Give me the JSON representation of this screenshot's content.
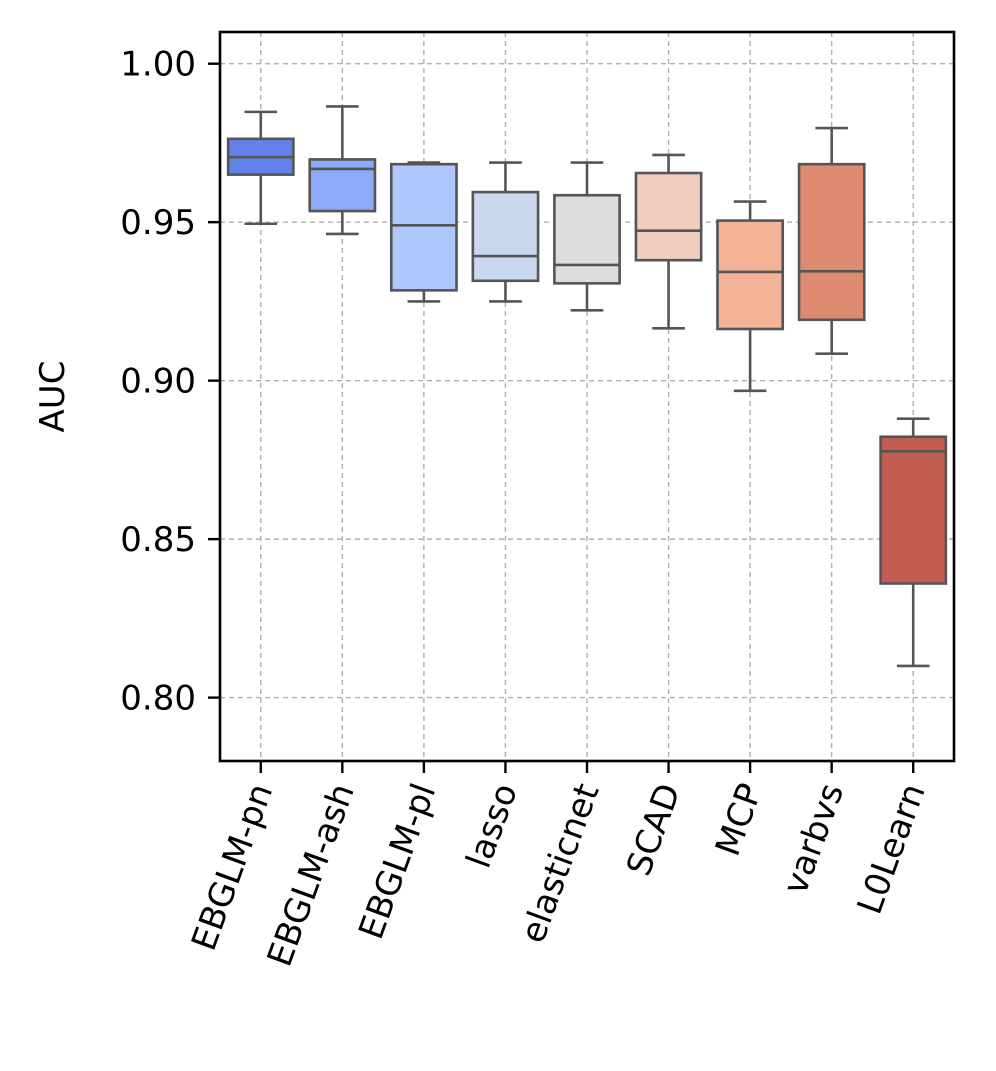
{
  "chart_data": {
    "type": "box",
    "title": "",
    "xlabel": "",
    "ylabel": "AUC",
    "ylim": [
      0.78,
      1.01
    ],
    "yticks": [
      "1.00",
      "0.95",
      "0.90",
      "0.85",
      "0.80"
    ],
    "grid": true,
    "categories": [
      "EBGLM-pn",
      "EBGLM-ash",
      "EBGLM-pl",
      "lasso",
      "elasticnet",
      "SCAD",
      "MCP",
      "varbvs",
      "L0Learn"
    ],
    "colors": [
      "#6282ea",
      "#8caaf7",
      "#aec7fd",
      "#cad8ef",
      "#dddddd",
      "#efcebd",
      "#f4b296",
      "#de8a71",
      "#c25d51"
    ],
    "edge_color": "#555555",
    "grid_color": "#b0b0b0",
    "boxes": [
      {
        "name": "EBGLM-pn",
        "whisker_low": 0.9495,
        "q1": 0.965,
        "median": 0.9705,
        "q3": 0.9763,
        "whisker_high": 0.9848
      },
      {
        "name": "EBGLM-ash",
        "whisker_low": 0.9463,
        "q1": 0.9535,
        "median": 0.9668,
        "q3": 0.9698,
        "whisker_high": 0.9865
      },
      {
        "name": "EBGLM-pl",
        "whisker_low": 0.925,
        "q1": 0.9285,
        "median": 0.949,
        "q3": 0.9683,
        "whisker_high": 0.9688
      },
      {
        "name": "lasso",
        "whisker_low": 0.925,
        "q1": 0.9315,
        "median": 0.9393,
        "q3": 0.9595,
        "whisker_high": 0.9688
      },
      {
        "name": "elasticnet",
        "whisker_low": 0.9222,
        "q1": 0.9307,
        "median": 0.9365,
        "q3": 0.9585,
        "whisker_high": 0.9688
      },
      {
        "name": "SCAD",
        "whisker_low": 0.9165,
        "q1": 0.938,
        "median": 0.9473,
        "q3": 0.9655,
        "whisker_high": 0.9712
      },
      {
        "name": "MCP",
        "whisker_low": 0.8968,
        "q1": 0.9163,
        "median": 0.9343,
        "q3": 0.9505,
        "whisker_high": 0.9565
      },
      {
        "name": "varbvs",
        "whisker_low": 0.9085,
        "q1": 0.9192,
        "median": 0.9345,
        "q3": 0.9683,
        "whisker_high": 0.9797
      },
      {
        "name": "L0Learn",
        "whisker_low": 0.81,
        "q1": 0.836,
        "median": 0.8777,
        "q3": 0.8823,
        "whisker_high": 0.888
      }
    ]
  }
}
